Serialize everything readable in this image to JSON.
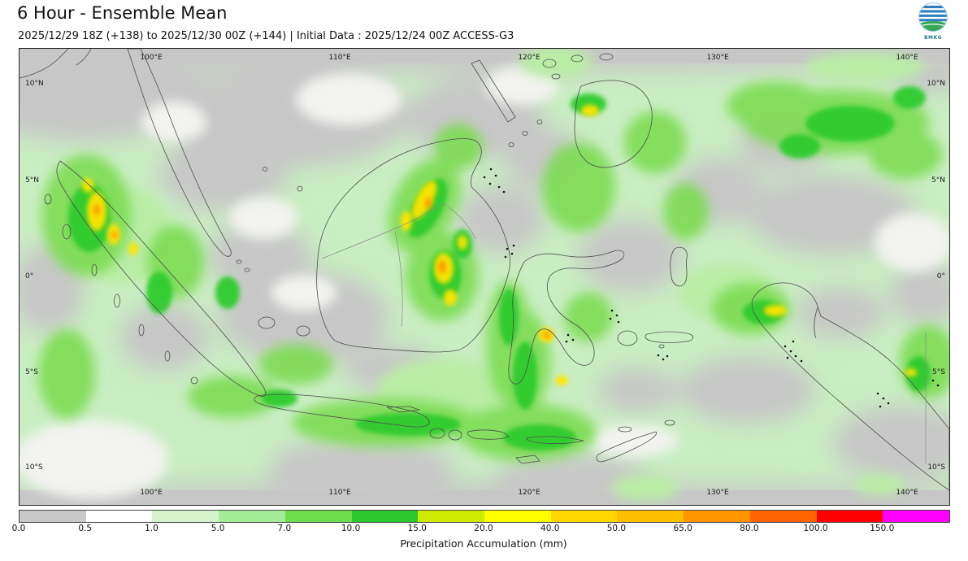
{
  "header": {
    "title": "6 Hour - Ensemble Mean",
    "subtitle": "2025/12/29 18Z (+138) to 2025/12/30 00Z (+144) | Initial Data : 2025/12/24 00Z ACCESS-G3",
    "logo_label": "BMKG"
  },
  "map": {
    "lat_labels": [
      "10°N",
      "5°N",
      "0°",
      "5°S",
      "10°S"
    ],
    "lon_labels": [
      "100°E",
      "110°E",
      "120°E",
      "130°E",
      "140°E"
    ]
  },
  "colorbar": {
    "title": "Precipitation Accumulation (mm)",
    "ticks": [
      "0.0",
      "0.5",
      "1.0",
      "5.0",
      "7.0",
      "10.0",
      "15.0",
      "20.0",
      "40.0",
      "50.0",
      "65.0",
      "80.0",
      "100.0",
      "150.0"
    ],
    "colors": [
      "#c8c8c8",
      "#ffffff",
      "#d5f3cd",
      "#a4ec96",
      "#6edd4d",
      "#2dc82d",
      "#cdea00",
      "#ffff00",
      "#ffd700",
      "#ffbe00",
      "#ff9600",
      "#ff6400",
      "#ff0000",
      "#ff00ff"
    ]
  },
  "chart_data": {
    "type": "heatmap",
    "title": "6 Hour - Ensemble Mean",
    "variable": "Precipitation Accumulation (mm)",
    "scale_breaks_mm": [
      0.0,
      0.5,
      1.0,
      5.0,
      7.0,
      10.0,
      15.0,
      20.0,
      40.0,
      50.0,
      65.0,
      80.0,
      100.0,
      150.0
    ],
    "scale_colors": [
      "#c8c8c8",
      "#ffffff",
      "#d5f3cd",
      "#a4ec96",
      "#6edd4d",
      "#2dc82d",
      "#cdea00",
      "#ffff00",
      "#ffd700",
      "#ffbe00",
      "#ff9600",
      "#ff6400",
      "#ff0000",
      "#ff00ff"
    ],
    "region": {
      "lon_ticks": [
        "100°E",
        "110°E",
        "120°E",
        "130°E",
        "140°E"
      ],
      "lat_ticks": [
        "10°N",
        "5°N",
        "0°",
        "5°S",
        "10°S"
      ]
    }
  }
}
